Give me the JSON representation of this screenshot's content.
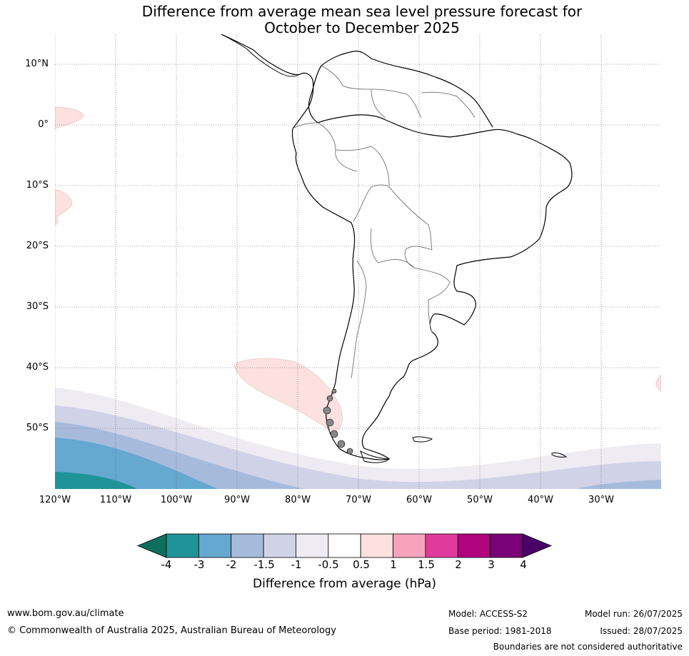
{
  "title_line1": "Difference from average mean sea level pressure forecast for",
  "title_line2": "October to December 2025",
  "map": {
    "lat_labels": [
      "10°N",
      "0°",
      "10°S",
      "20°S",
      "30°S",
      "40°S",
      "50°S"
    ],
    "lon_labels": [
      "120°W",
      "110°W",
      "100°W",
      "90°W",
      "80°W",
      "70°W",
      "60°W",
      "50°W",
      "40°W",
      "30°W"
    ],
    "region": "South America and surrounding oceans",
    "colors": {
      "land_outline": "#000000",
      "borders": "#808080",
      "grid": "#555555"
    }
  },
  "colorbar": {
    "title": "Difference from average (hPa)",
    "tick_labels": [
      "-4",
      "-3",
      "-2",
      "-1.5",
      "-1",
      "-0.5",
      "0.5",
      "1",
      "1.5",
      "2",
      "3",
      "4"
    ],
    "colors": [
      "#0e6e5e",
      "#1e9398",
      "#65a8d0",
      "#a6bbdc",
      "#d0d2e7",
      "#efebf3",
      "#ffffff",
      "#fde0e0",
      "#f8a3bd",
      "#e03a9c",
      "#b0037e",
      "#7a0178",
      "#4a016a"
    ]
  },
  "footer": {
    "website": "www.bom.gov.au/climate",
    "copyright": "© Commonwealth of Australia 2025, Australian Bureau of Meteorology",
    "model": "Model: ACCESS-S2",
    "base_period": "Base period: 1981-2018",
    "model_run": "Model run: 26/07/2025",
    "issued": "Issued: 28/07/2025",
    "disclaimer": "Boundaries are not considered authoritative"
  }
}
